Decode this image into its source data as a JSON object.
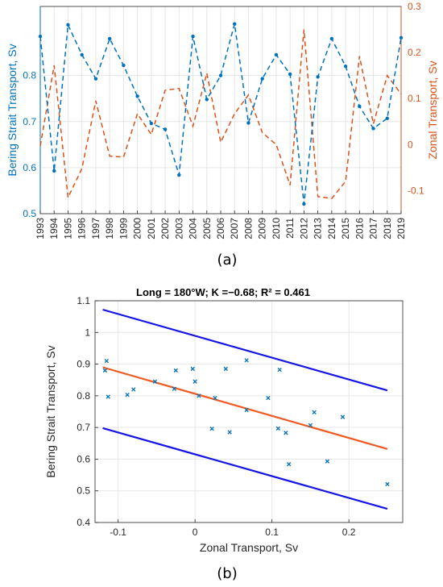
{
  "chart_data": [
    {
      "type": "line",
      "panel_label": "(a)",
      "x": [
        1993,
        1994,
        1995,
        1996,
        1997,
        1998,
        1999,
        2000,
        2001,
        2002,
        2003,
        2004,
        2005,
        2006,
        2007,
        2008,
        2009,
        2010,
        2011,
        2012,
        2013,
        2014,
        2015,
        2016,
        2017,
        2018,
        2019
      ],
      "xtick_labels": [
        "1993",
        "1994",
        "1995",
        "1996",
        "1997",
        "1998",
        "1999",
        "2000",
        "2001",
        "2002",
        "2003",
        "2004",
        "2005",
        "2006",
        "2007",
        "2008",
        "2009",
        "2010",
        "2011",
        "2012",
        "2013",
        "2014",
        "2015",
        "2016",
        "2017",
        "2018",
        "2019"
      ],
      "ylabel_left": "Bering Strait Transport, Sv",
      "ylabel_right": "Zonal Transport, Sv",
      "ylim_left": [
        0.5,
        0.95
      ],
      "ylim_right": [
        -0.15,
        0.3
      ],
      "yticks_left": [
        "0.5",
        "0.6",
        "0.7",
        "0.8"
      ],
      "yticks_right": [
        "-0.1",
        "0",
        "0.1",
        "0.2",
        "0.3"
      ],
      "grid": true,
      "series": [
        {
          "axis": "left",
          "color": "#0072BD",
          "style": "dashed-with-dots",
          "values": [
            0.885,
            0.593,
            0.91,
            0.845,
            0.793,
            0.88,
            0.822,
            0.755,
            0.696,
            0.683,
            0.584,
            0.885,
            0.748,
            0.8,
            0.912,
            0.697,
            0.793,
            0.845,
            0.803,
            0.521,
            0.797,
            0.88,
            0.82,
            0.733,
            0.685,
            0.707,
            0.882
          ]
        },
        {
          "axis": "right",
          "color": "#D95319",
          "style": "dashed",
          "values": [
            -0.003,
            0.172,
            -0.115,
            -0.052,
            0.095,
            -0.025,
            -0.027,
            0.067,
            0.022,
            0.118,
            0.122,
            0.04,
            0.155,
            0.005,
            0.067,
            0.108,
            0.026,
            0.0,
            -0.088,
            0.25,
            -0.113,
            -0.117,
            -0.08,
            0.192,
            0.045,
            0.15,
            0.11
          ]
        }
      ]
    },
    {
      "type": "scatter",
      "panel_label": "(b)",
      "title": "Long = 180°W;  K =−0.68;  R² = 0.461",
      "xlabel": "Zonal Transport, Sv",
      "ylabel": "Bering Strait Transport, Sv",
      "xlim": [
        -0.13,
        0.27
      ],
      "ylim": [
        0.4,
        1.1
      ],
      "xticks": [
        "-0.1",
        "0",
        "0.1",
        "0.2"
      ],
      "yticks": [
        "0.4",
        "0.5",
        "0.6",
        "0.7",
        "0.8",
        "0.9",
        "1",
        "1.1"
      ],
      "grid": true,
      "points": {
        "color": "#0072BD",
        "marker": "x",
        "x": [
          -0.003,
          0.172,
          -0.115,
          -0.052,
          0.095,
          -0.025,
          -0.027,
          0.067,
          0.022,
          0.118,
          0.122,
          0.04,
          0.155,
          0.005,
          0.067,
          0.108,
          0.026,
          0.0,
          -0.088,
          0.25,
          -0.113,
          -0.117,
          -0.08,
          0.192,
          0.045,
          0.15,
          0.11
        ],
        "y": [
          0.885,
          0.593,
          0.91,
          0.845,
          0.793,
          0.88,
          0.822,
          0.755,
          0.696,
          0.683,
          0.584,
          0.885,
          0.748,
          0.8,
          0.912,
          0.697,
          0.793,
          0.845,
          0.803,
          0.521,
          0.797,
          0.88,
          0.82,
          0.733,
          0.685,
          0.707,
          0.882
        ]
      },
      "regression": {
        "color": "#F05A22",
        "x": [
          -0.12,
          0.25
        ],
        "y": [
          0.89,
          0.632
        ]
      },
      "bounds": {
        "color": "#1414E6",
        "upper": {
          "x": [
            -0.12,
            0.25
          ],
          "y": [
            1.072,
            0.817
          ]
        },
        "lower": {
          "x": [
            -0.12,
            0.25
          ],
          "y": [
            0.698,
            0.443
          ]
        }
      }
    }
  ]
}
